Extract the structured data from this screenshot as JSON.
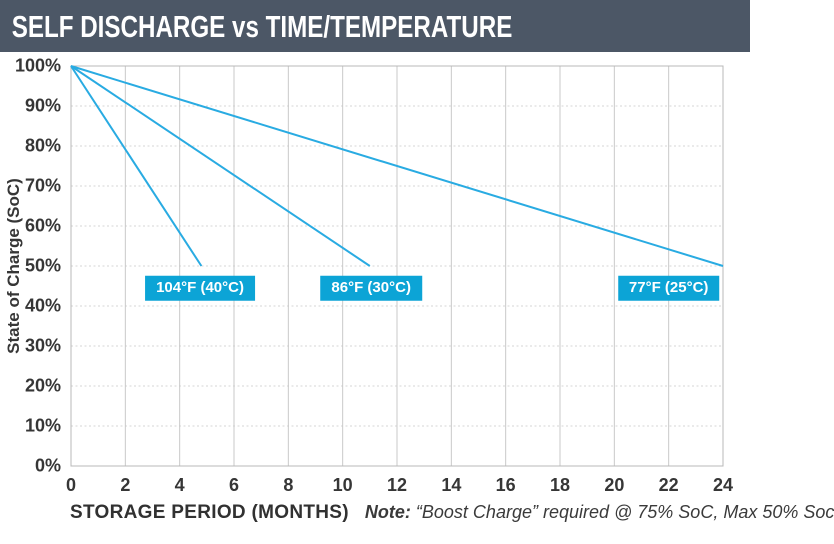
{
  "header": {
    "title": "SELF DISCHARGE vs TIME/TEMPERATURE"
  },
  "colors": {
    "header_bg": "#4c5766",
    "header_text": "#ffffff",
    "line": "#29abe2",
    "legend_bg": "#0ca4d6",
    "legend_text": "#ffffff",
    "axis_text": "#363636",
    "grid_vertical": "#c9c9c9",
    "grid_horizontal": "#d6d6d6",
    "plot_border": "#b8b8b8"
  },
  "chart_data": {
    "type": "line",
    "title": "SELF DISCHARGE vs TIME/TEMPERATURE",
    "xlabel": "STORAGE PERIOD (MONTHS)",
    "ylabel": "State of Charge (SoC)",
    "xlim": [
      0,
      24
    ],
    "ylim": [
      0,
      100
    ],
    "x_ticks": [
      0,
      2,
      4,
      6,
      8,
      10,
      12,
      14,
      16,
      18,
      20,
      22,
      24
    ],
    "y_ticks": [
      100,
      90,
      80,
      70,
      60,
      50,
      40,
      30,
      20,
      10,
      0
    ],
    "y_tick_suffix": "%",
    "grid": true,
    "legend_position": "inline-labels",
    "series": [
      {
        "name": "104°F (40°C)",
        "points": [
          [
            0,
            100
          ],
          [
            4.8,
            50
          ]
        ],
        "label_pos": {
          "x": 4.75,
          "y": 44.4
        }
      },
      {
        "name": "86°F (30°C)",
        "points": [
          [
            0,
            100
          ],
          [
            11,
            50
          ]
        ],
        "label_pos": {
          "x": 11.05,
          "y": 44.4
        }
      },
      {
        "name": "77°F (25°C)",
        "points": [
          [
            0,
            100
          ],
          [
            24,
            50
          ]
        ],
        "label_pos": {
          "x": 22,
          "y": 44.4
        }
      }
    ],
    "note": {
      "prefix": "Note:",
      "text": "“Boost Charge” required @ 75% SoC, Max 50% Soc"
    }
  }
}
